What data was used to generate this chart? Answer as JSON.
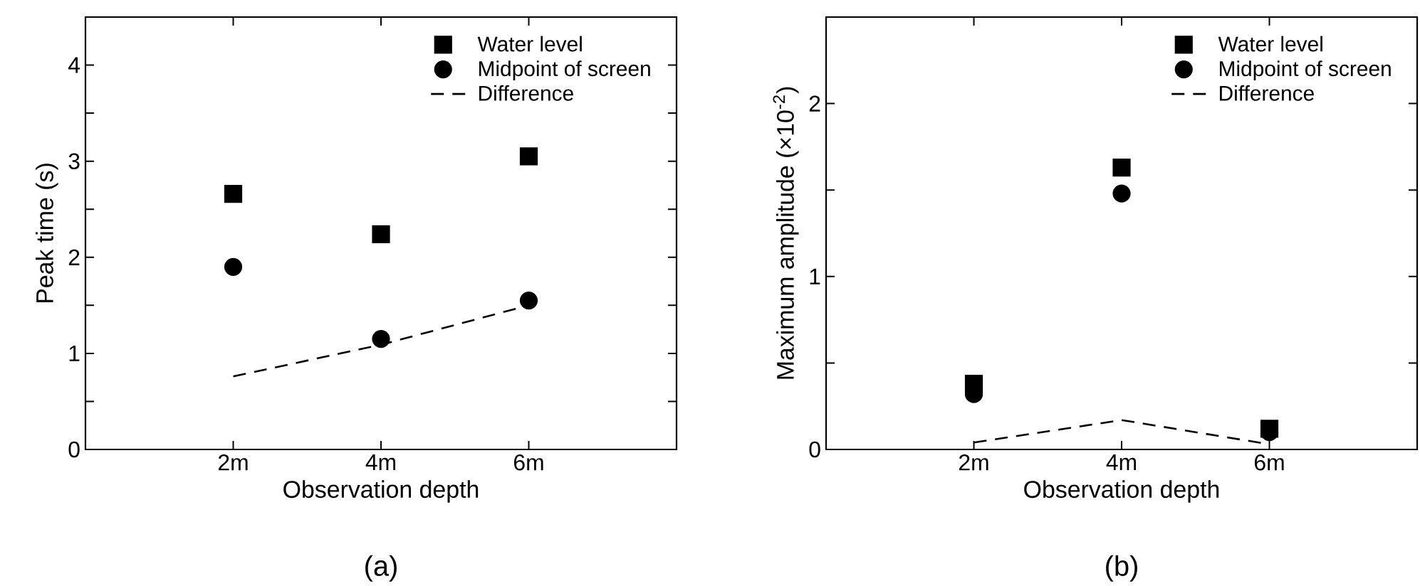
{
  "chart_data": [
    {
      "type": "scatter",
      "xlabel": "Observation depth",
      "ylabel": "Peak time (s)",
      "x": [
        2,
        4,
        6
      ],
      "xlim": [
        0,
        8
      ],
      "xticks": [
        {
          "value": 2,
          "label": "2m"
        },
        {
          "value": 4,
          "label": "4m"
        },
        {
          "value": 6,
          "label": "6m"
        }
      ],
      "ylim": [
        0,
        4.5
      ],
      "yticks": [
        0,
        {
          "value": 0.5,
          "label": null
        },
        1,
        {
          "value": 1.5,
          "label": null
        },
        2,
        {
          "value": 2.5,
          "label": null
        },
        3,
        {
          "value": 3.5,
          "label": null
        },
        4
      ],
      "legend": "top right",
      "annotations": [
        "(a)"
      ],
      "series": [
        {
          "name": "Water level",
          "marker": "square",
          "color": "#000000",
          "values": [
            2.66,
            2.24,
            3.05
          ]
        },
        {
          "name": "Midpoint of screen",
          "marker": "circle",
          "color": "#000000",
          "values": [
            1.9,
            1.15,
            1.55
          ]
        },
        {
          "name": "Difference",
          "type": "line",
          "line_style": "dashed",
          "color": "#000000",
          "values": [
            0.76,
            1.09,
            1.5
          ]
        }
      ]
    },
    {
      "type": "scatter",
      "xlabel": "Observation depth",
      "ylabel": "Maximum amplitude (×10$^{-2}$)",
      "x": [
        2,
        4,
        6
      ],
      "xlim": [
        0,
        8
      ],
      "xticks": [
        {
          "value": 2,
          "label": "2m"
        },
        {
          "value": 4,
          "label": "4m"
        },
        {
          "value": 6,
          "label": "6m"
        }
      ],
      "ylim": [
        0,
        2.5
      ],
      "yticks": [
        0,
        {
          "value": 0.5,
          "label": null
        },
        1,
        {
          "value": 1.5,
          "label": null
        },
        2
      ],
      "legend": "top right",
      "annotations": [
        "(b)"
      ],
      "series": [
        {
          "name": "Water level",
          "marker": "square",
          "color": "#000000",
          "values": [
            0.38,
            1.63,
            0.12
          ]
        },
        {
          "name": "Midpoint of screen",
          "marker": "circle",
          "color": "#000000",
          "values": [
            0.32,
            1.48,
            0.1
          ]
        },
        {
          "name": "Difference",
          "type": "line",
          "line_style": "dashed",
          "color": "#000000",
          "values": [
            0.04,
            0.17,
            0.03
          ]
        }
      ]
    }
  ]
}
